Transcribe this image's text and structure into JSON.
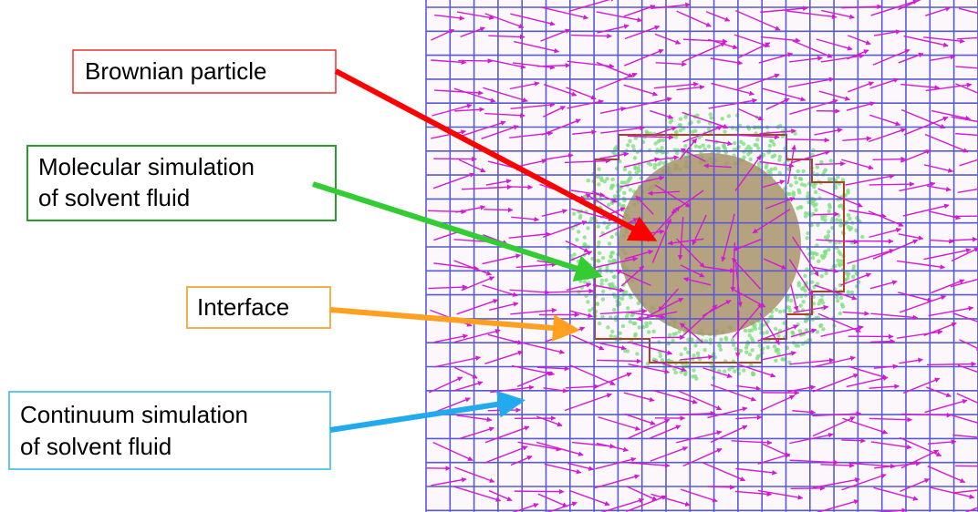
{
  "labels": [
    {
      "lines": [
        "Brownian particle"
      ]
    },
    {
      "lines": [
        "Molecular simulation",
        "of solvent fluid"
      ]
    },
    {
      "lines": [
        "Interface"
      ]
    },
    {
      "lines": [
        "Continuum simulation",
        "of solvent fluid"
      ]
    }
  ]
}
